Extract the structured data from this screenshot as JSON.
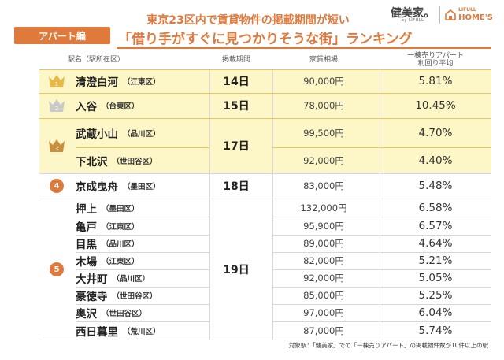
{
  "header": {
    "category_tag": "アパート編",
    "title_line1": "東京23区内で賃貸物件の掲載期間が短い",
    "title_line2": "「借り手がすぐに見つかりそうな街」ランキング"
  },
  "logos": {
    "kenbi": "健美家。",
    "kenbi_sub": "by LIFULL",
    "lifull_top": "LIFULL",
    "lifull_bottom": "HOME'S"
  },
  "columns": {
    "station": "駅名（駅所在区）",
    "period": "掲載期間",
    "rent": "家賃相場",
    "yield_line1": "一棟売りアパート",
    "yield_line2": "利回り平均"
  },
  "ranks": {
    "rank1": "1",
    "rank2": "2",
    "rank3": "3",
    "rank4": "4",
    "rank5": "5"
  },
  "periods": {
    "p1": "14日",
    "p2": "15日",
    "p3": "17日",
    "p4": "18日",
    "p5": "19日"
  },
  "rows": [
    {
      "station": "清澄白河",
      "ward": "（江東区）",
      "rent": "90,000円",
      "yield": "5.81%"
    },
    {
      "station": "入谷",
      "ward": "（台東区）",
      "rent": "78,000円",
      "yield": "10.45%"
    },
    {
      "station": "武蔵小山",
      "ward": "（品川区）",
      "rent": "99,500円",
      "yield": "4.70%"
    },
    {
      "station": "下北沢",
      "ward": "（世田谷区）",
      "rent": "92,000円",
      "yield": "4.40%"
    },
    {
      "station": "京成曳舟",
      "ward": "（墨田区）",
      "rent": "83,000円",
      "yield": "5.48%"
    },
    {
      "station": "押上",
      "ward": "（墨田区）",
      "rent": "132,000円",
      "yield": "6.58%"
    },
    {
      "station": "亀戸",
      "ward": "（江東区）",
      "rent": "95,900円",
      "yield": "6.57%"
    },
    {
      "station": "目黒",
      "ward": "（品川区）",
      "rent": "89,000円",
      "yield": "4.64%"
    },
    {
      "station": "木場",
      "ward": "（江東区）",
      "rent": "82,000円",
      "yield": "5.21%"
    },
    {
      "station": "大井町",
      "ward": "（品川区）",
      "rent": "92,000円",
      "yield": "5.05%"
    },
    {
      "station": "豪徳寺",
      "ward": "（世田谷区）",
      "rent": "85,000円",
      "yield": "5.25%"
    },
    {
      "station": "奥沢",
      "ward": "（世田谷区）",
      "rent": "97,000円",
      "yield": "6.04%"
    },
    {
      "station": "西日暮里",
      "ward": "（荒川区）",
      "rent": "87,000円",
      "yield": "5.74%"
    }
  ],
  "footnote": "対象駅：「健美家」での「一棟売りアパート」の掲載物件数が10件以上の駅",
  "colors": {
    "accent": "#e07a3c",
    "highlight": "#fdf6c6",
    "gold": "#e8b84a",
    "silver": "#c9c9c9",
    "bronze": "#c98f3a"
  }
}
